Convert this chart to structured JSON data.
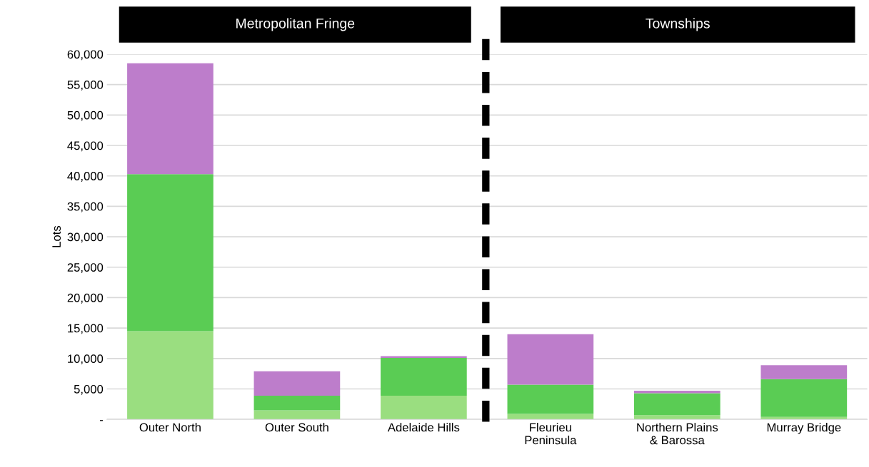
{
  "chart_data": {
    "type": "bar",
    "stacked": true,
    "ylabel": "Lots",
    "categories": [
      "Outer North",
      "Outer South",
      "Adelaide Hills",
      "Fleurieu\nPeninsula",
      "Northern Plains\n& Barossa",
      "Murray Bridge"
    ],
    "series": [
      {
        "color": "#9ade80",
        "values": [
          14500,
          1500,
          3900,
          900,
          700,
          400
        ]
      },
      {
        "color": "#5acc54",
        "values": [
          25800,
          2400,
          6200,
          4800,
          3600,
          6200
        ]
      },
      {
        "color": "#bd7dcb",
        "values": [
          18200,
          4000,
          300,
          8300,
          400,
          2300
        ]
      }
    ],
    "ylim": [
      0,
      60000
    ],
    "yticks": [
      {
        "value": 0,
        "label": "-"
      },
      {
        "value": 5000,
        "label": "5,000"
      },
      {
        "value": 10000,
        "label": "10,000"
      },
      {
        "value": 15000,
        "label": "15,000"
      },
      {
        "value": 20000,
        "label": "20,000"
      },
      {
        "value": 25000,
        "label": "25,000"
      },
      {
        "value": 30000,
        "label": "30,000"
      },
      {
        "value": 35000,
        "label": "35,000"
      },
      {
        "value": 40000,
        "label": "40,000"
      },
      {
        "value": 45000,
        "label": "45,000"
      },
      {
        "value": 50000,
        "label": "50,000"
      },
      {
        "value": 55000,
        "label": "55,000"
      },
      {
        "value": 60000,
        "label": "60,000"
      }
    ],
    "grid": "y",
    "annotations": [
      "Metropolitan Fringe",
      "Townships"
    ]
  }
}
